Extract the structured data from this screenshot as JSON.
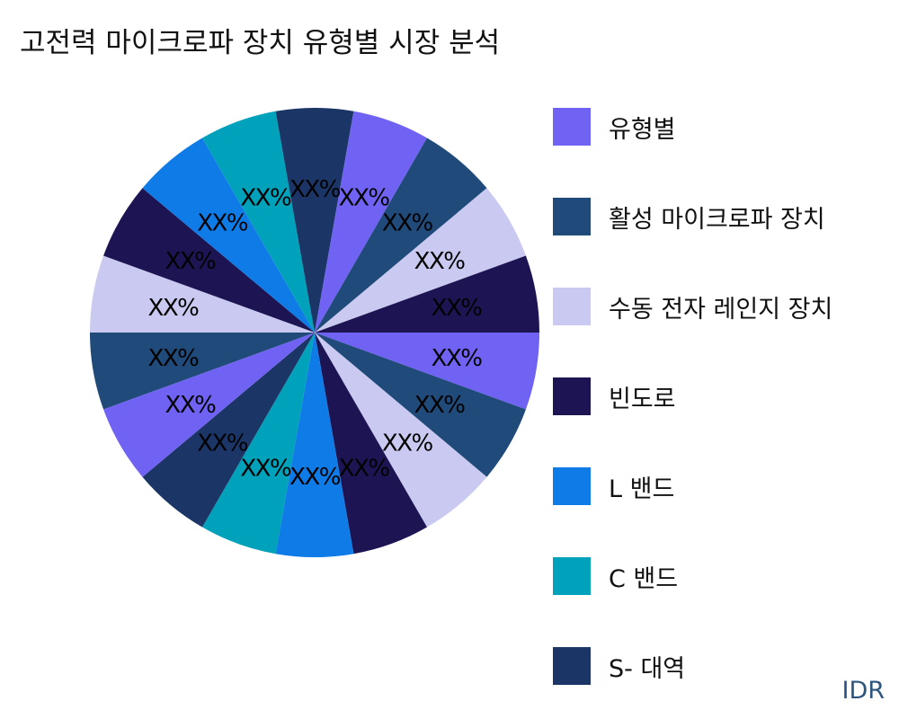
{
  "chart_data": {
    "type": "pie",
    "title": "고전력 마이크로파 장치 유형별 시장 분석",
    "slices": [
      {
        "legend": "유형별",
        "label": "XX%",
        "value": 1,
        "color": "#7063f3"
      },
      {
        "legend": "활성 마이크로파 장치",
        "label": "XX%",
        "value": 1,
        "color": "#1f4a7a"
      },
      {
        "legend": "수동 전자 레인지 장치",
        "label": "XX%",
        "value": 1,
        "color": "#c9c9f1"
      },
      {
        "legend": "빈도로",
        "label": "XX%",
        "value": 1,
        "color": "#1d1553"
      },
      {
        "legend": "L 밴드",
        "label": "XX%",
        "value": 1,
        "color": "#0e7be6"
      },
      {
        "legend": "C 밴드",
        "label": "XX%",
        "value": 1,
        "color": "#00a2bb"
      },
      {
        "legend": "S- 대역",
        "label": "XX%",
        "value": 1,
        "color": "#1b3567"
      },
      {
        "label": "XX%",
        "value": 1,
        "color": "#7063f3"
      },
      {
        "label": "XX%",
        "value": 1,
        "color": "#1f4a7a"
      },
      {
        "label": "XX%",
        "value": 1,
        "color": "#c9c9f1"
      },
      {
        "label": "XX%",
        "value": 1,
        "color": "#1d1553"
      },
      {
        "label": "XX%",
        "value": 1,
        "color": "#0e7be6"
      },
      {
        "label": "XX%",
        "value": 1,
        "color": "#00a2bb"
      },
      {
        "label": "XX%",
        "value": 1,
        "color": "#1b3567"
      },
      {
        "label": "XX%",
        "value": 1,
        "color": "#7063f3"
      },
      {
        "label": "XX%",
        "value": 1,
        "color": "#1f4a7a"
      },
      {
        "label": "XX%",
        "value": 1,
        "color": "#c9c9f1"
      },
      {
        "label": "XX%",
        "value": 1,
        "color": "#1d1553"
      }
    ],
    "legend_position": "right",
    "start_direction": "east",
    "direction": "clockwise",
    "source_mark": "IDR"
  }
}
